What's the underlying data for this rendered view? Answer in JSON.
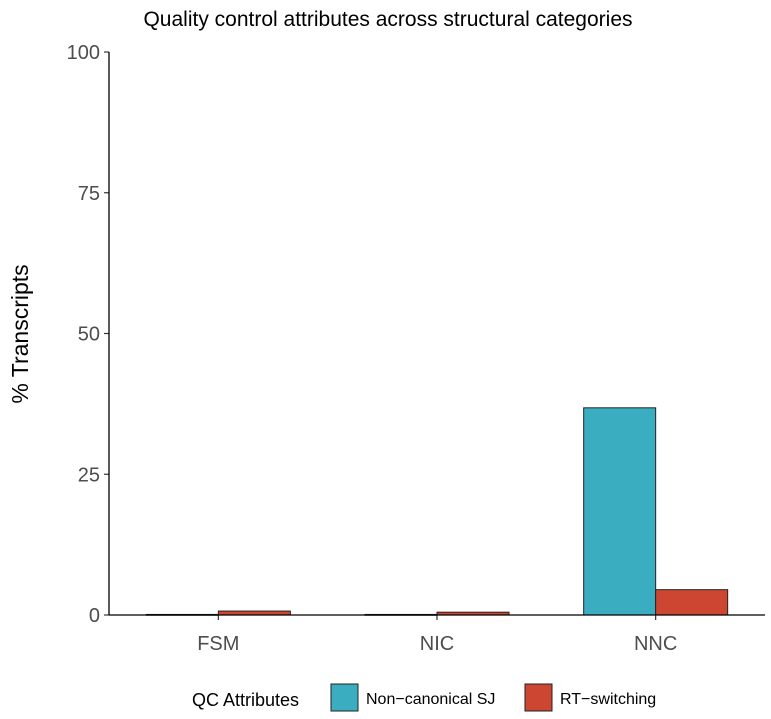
{
  "chart_data": {
    "type": "bar",
    "title": "Quality control attributes across structural categories",
    "xlabel": "",
    "ylabel": "% Transcripts",
    "categories": [
      "FSM",
      "NIC",
      "NNC"
    ],
    "series": [
      {
        "name": "Non−canonical SJ",
        "color": "#3aaec0",
        "values": [
          0.1,
          0.1,
          36.8
        ]
      },
      {
        "name": "RT−switching",
        "color": "#cc4632",
        "values": [
          0.7,
          0.5,
          4.5
        ]
      }
    ],
    "ylim": [
      0,
      100
    ],
    "yticks": [
      0,
      25,
      50,
      75,
      100
    ],
    "grid": false,
    "legend": {
      "title": "QC Attributes",
      "position": "bottom"
    }
  }
}
